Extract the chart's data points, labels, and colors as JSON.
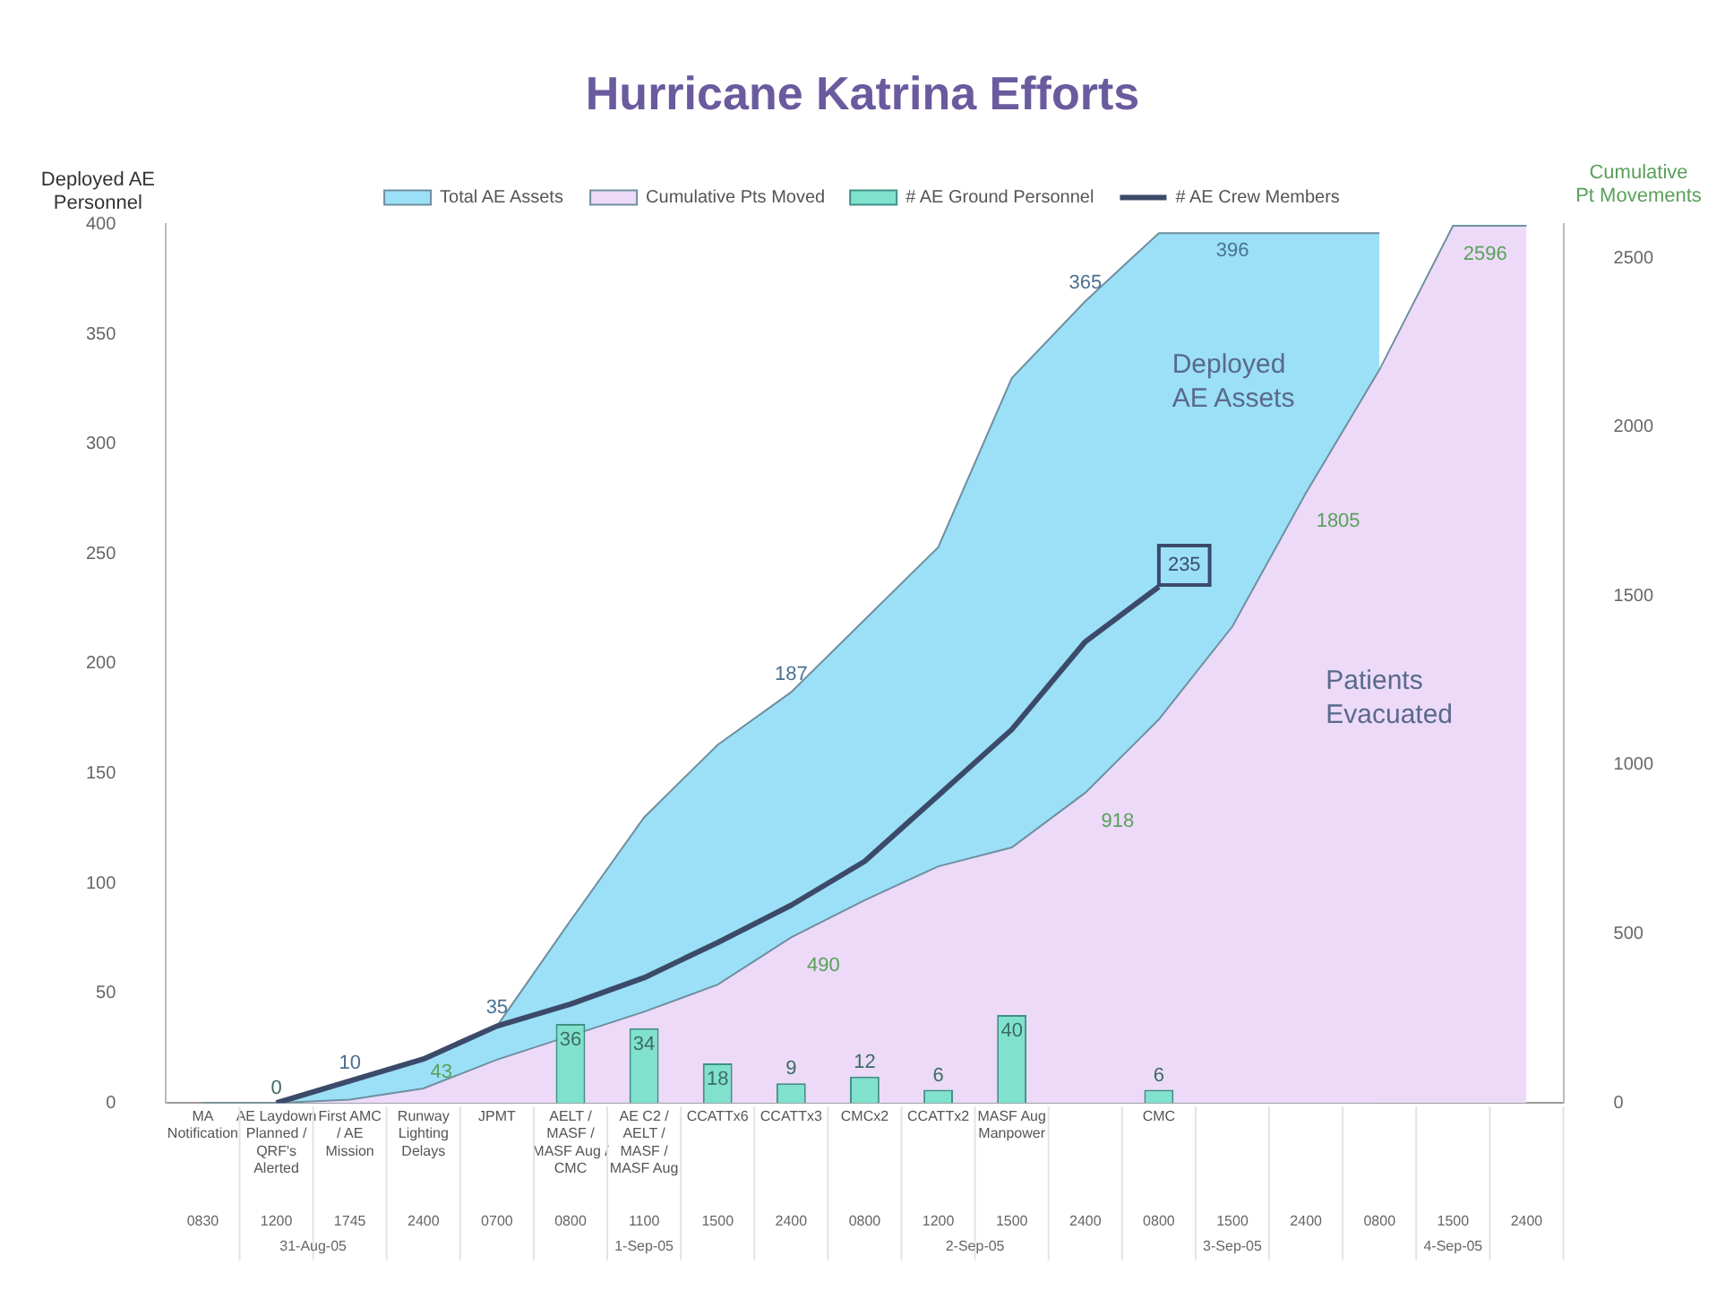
{
  "chart_data": {
    "type": "area",
    "title": "Hurricane Katrina Efforts",
    "ylabel": "Deployed AE Personnel",
    "y2label": "Cumulative Pt Movements",
    "categories": [
      "MA Notification",
      "AE Laydown Planned / QRF's Alerted",
      "First AMC / AE Mission",
      "Runway Lighting Delays",
      "JPMT",
      "AELT / MASF / MASF Aug / CMC",
      "AE C2 / AELT / MASF / MASF Aug",
      "CCATTx6",
      "CCATTx3",
      "CMCx2",
      "CCATTx2",
      "MASF Aug Manpower",
      null,
      "CMC",
      null,
      null,
      null,
      null,
      null
    ],
    "series": [
      {
        "name": "Total AE Assets",
        "color": "#9be0f6",
        "values": [
          0,
          0,
          10,
          20,
          35,
          83,
          130,
          163,
          187,
          220,
          253,
          330,
          365,
          396,
          396,
          396,
          396,
          null,
          null
        ],
        "value_labels": [
          null,
          null,
          "10",
          null,
          "35",
          null,
          null,
          null,
          "187",
          null,
          null,
          null,
          "365",
          null,
          "396",
          null,
          null,
          null,
          null
        ]
      },
      {
        "name": "Cumulative Pts Moved",
        "axis": "y2",
        "color": "#ecdaf8",
        "values": [
          0,
          0,
          10,
          43,
          128,
          null,
          270,
          350,
          490,
          600,
          700,
          756,
          918,
          1135,
          1410,
          1805,
          2170,
          2596,
          2596
        ],
        "value_labels": [
          null,
          null,
          null,
          "43",
          null,
          null,
          null,
          null,
          "490",
          null,
          null,
          null,
          "918",
          null,
          null,
          "1805",
          null,
          "2596",
          null
        ]
      },
      {
        "name": "# AE Ground Personnel",
        "type": "bar",
        "color": "#80e2cc",
        "values": [
          null,
          0,
          null,
          null,
          null,
          36,
          34,
          18,
          9,
          12,
          6,
          40,
          null,
          6,
          null,
          null,
          null,
          null,
          null
        ],
        "value_labels": [
          null,
          "0",
          null,
          null,
          null,
          "36",
          "34",
          "18",
          "9",
          "12",
          "6",
          "40",
          null,
          "6",
          null,
          null,
          null,
          null,
          null
        ]
      },
      {
        "name": "# AE Crew Members",
        "type": "line",
        "color": "#3c4a6a",
        "values": [
          null,
          0,
          10,
          20,
          35,
          45,
          57,
          73,
          90,
          110,
          140,
          170,
          210,
          235,
          null,
          null,
          null,
          null,
          null
        ],
        "value_labels": [
          null,
          null,
          null,
          null,
          null,
          null,
          null,
          null,
          null,
          null,
          null,
          null,
          null,
          "235",
          null,
          null,
          null,
          null,
          null
        ]
      }
    ],
    "ylim": [
      0,
      400
    ],
    "yticks": [
      0,
      50,
      100,
      150,
      200,
      250,
      300,
      350,
      400
    ],
    "y2lim": [
      0,
      2600
    ],
    "y2ticks": [
      0,
      500,
      1000,
      1500,
      2000,
      2500
    ],
    "legend": "top",
    "grid": false,
    "marker": "none",
    "annotations": [
      "0830",
      "1200",
      "1745",
      "2400",
      "0700",
      "0800",
      "1100",
      "1500",
      "2400",
      "0800",
      "1200",
      "1500",
      "2400",
      "0800",
      "1500",
      "2400",
      "0800",
      "1500",
      "2400",
      "31-Aug-05",
      "1-Sep-05",
      "2-Sep-05",
      "3-Sep-05",
      "4-Sep-05",
      "Deployed AE Assets",
      "Patients Evacuated"
    ]
  }
}
